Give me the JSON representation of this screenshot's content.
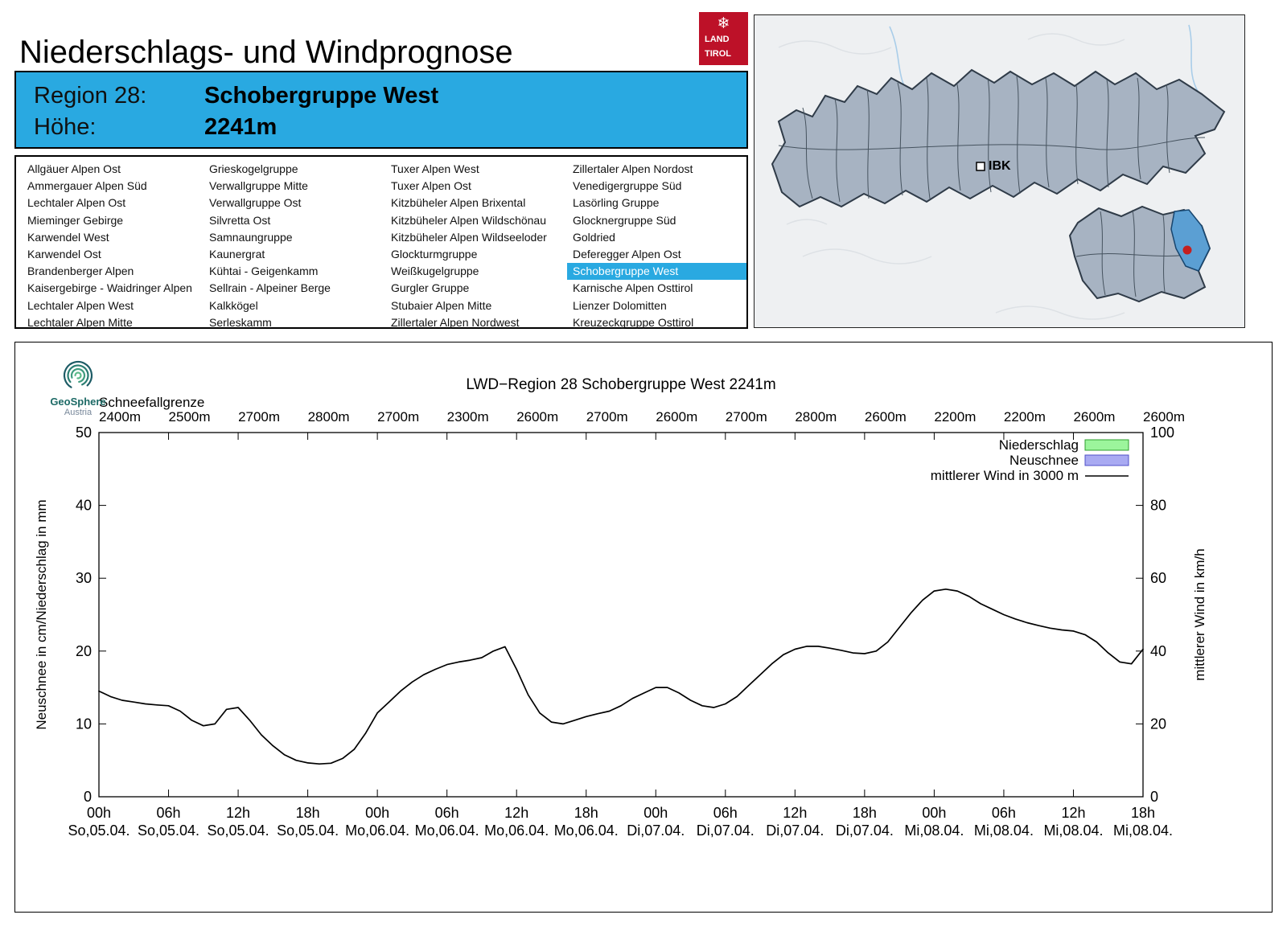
{
  "header": {
    "title": "Niederschlags- und Windprognose",
    "logo": {
      "line1": "LAND",
      "line2": "TIROL",
      "color": "#bd1128"
    },
    "region_label": "Region 28:",
    "region_name": "Schobergruppe West",
    "altitude_label": "Höhe:",
    "altitude_value": "2241m",
    "accent_color": "#29a9e1"
  },
  "region_list": {
    "selected": "Schobergruppe West",
    "columns": [
      [
        "Allgäuer Alpen Ost",
        "Ammergauer Alpen Süd",
        "Lechtaler Alpen Ost",
        "Mieminger Gebirge",
        "Karwendel West",
        "Karwendel Ost",
        "Brandenberger Alpen",
        "Kaisergebirge - Waidringer Alpen",
        "Lechtaler Alpen West",
        "Lechtaler Alpen Mitte"
      ],
      [
        "Grieskogelgruppe",
        "Verwallgruppe Mitte",
        "Verwallgruppe Ost",
        "Silvretta Ost",
        "Samnaungruppe",
        "Kaunergrat",
        "Kühtai - Geigenkamm",
        "Sellrain - Alpeiner Berge",
        "Kalkkögel",
        "Serleskamm"
      ],
      [
        "Tuxer Alpen West",
        "Tuxer Alpen Ost",
        "Kitzbüheler Alpen Brixental",
        "Kitzbüheler Alpen Wildschönau",
        "Kitzbüheler Alpen Wildseeloder",
        "Glockturmgruppe",
        "Weißkugelgruppe",
        "Gurgler Gruppe",
        "Stubaier Alpen Mitte",
        "Zillertaler Alpen Nordwest"
      ],
      [
        "Zillertaler Alpen Nordost",
        "Venedigergruppe Süd",
        "Lasörling Gruppe",
        "Glocknergruppe Süd",
        "Goldried",
        "Deferegger Alpen Ost",
        "Schobergruppe West",
        "Karnische Alpen Osttirol",
        "Lienzer Dolomitten",
        "Kreuzeckgruppe Osttirol"
      ]
    ]
  },
  "map": {
    "city_label": "IBK",
    "highlight_color": "#5b9fd3",
    "marker_color": "#c42020"
  },
  "chart_header": {
    "logo_line1": "GeoSphere",
    "logo_line2": "Austria"
  },
  "chart_data": {
    "type": "line",
    "title": "LWD−Region 28 Schobergruppe West 2241m",
    "snowline_label": "Schneefallgrenze",
    "snowline_values": [
      "2400m",
      "2500m",
      "2700m",
      "2800m",
      "2700m",
      "2300m",
      "2600m",
      "2700m",
      "2600m",
      "2700m",
      "2800m",
      "2600m",
      "2200m",
      "2200m",
      "2600m",
      "2600m"
    ],
    "ylabel_left": "Neuschnee in cm/Niederschlag in mm",
    "ylabel_right": "mittlerer Wind in km/h",
    "ylim_left": [
      0,
      50
    ],
    "ylim_right": [
      0,
      100
    ],
    "x_ticks_hours": [
      "00h",
      "06h",
      "12h",
      "18h",
      "00h",
      "06h",
      "12h",
      "18h",
      "00h",
      "06h",
      "12h",
      "18h",
      "00h",
      "06h",
      "12h",
      "18h"
    ],
    "x_ticks_dates": [
      "So,05.04.",
      "So,05.04.",
      "So,05.04.",
      "So,05.04.",
      "Mo,06.04.",
      "Mo,06.04.",
      "Mo,06.04.",
      "Mo,06.04.",
      "Di,07.04.",
      "Di,07.04.",
      "Di,07.04.",
      "Di,07.04.",
      "Mi,08.04.",
      "Mi,08.04.",
      "Mi,08.04.",
      "Mi,08.04."
    ],
    "legend": [
      {
        "label": "Niederschlag",
        "type": "box",
        "fill": "#9cf59c",
        "border": "#2e9e2e"
      },
      {
        "label": "Neuschnee",
        "type": "box",
        "fill": "#a9aaf2",
        "border": "#5050c8"
      },
      {
        "label": "mittlerer Wind in 3000 m",
        "type": "line",
        "color": "#000000"
      }
    ],
    "precipitation_mm": [],
    "new_snow_cm": [],
    "wind_series": {
      "name": "mittlerer Wind in 3000 m",
      "axis": "right",
      "x_hours": [
        0,
        1,
        2,
        3,
        4,
        5,
        6,
        7,
        8,
        9,
        10,
        11,
        12,
        13,
        14,
        15,
        16,
        17,
        18,
        19,
        20,
        21,
        22,
        23,
        24,
        25,
        26,
        27,
        28,
        29,
        30,
        31,
        32,
        33,
        34,
        35,
        36,
        37,
        38,
        39,
        40,
        41,
        42,
        43,
        44,
        45,
        46,
        47,
        48,
        49,
        50,
        51,
        52,
        53,
        54,
        55,
        56,
        57,
        58,
        59,
        60,
        61,
        62,
        63,
        64,
        65,
        66,
        67,
        68,
        69,
        70,
        71,
        72,
        73,
        74,
        75,
        76,
        77,
        78,
        79,
        80,
        81,
        82,
        83,
        84,
        85,
        86,
        87,
        88,
        89,
        90
      ],
      "values_kmh": [
        29,
        27.5,
        26.5,
        26,
        25.5,
        25.2,
        25,
        23.5,
        21,
        19.5,
        20,
        24,
        24.5,
        21,
        17,
        14,
        11.5,
        10,
        9.3,
        9,
        9.2,
        10.5,
        13,
        17.5,
        23,
        26,
        29,
        31.5,
        33.5,
        35,
        36.3,
        37,
        37.5,
        38.2,
        40,
        41.2,
        35,
        28,
        23,
        20.5,
        20,
        21,
        22,
        22.8,
        23.5,
        25,
        27,
        28.5,
        30,
        30,
        28.5,
        26.5,
        25,
        24.5,
        25.5,
        27.5,
        30.5,
        33.5,
        36.5,
        39,
        40.5,
        41.3,
        41.3,
        40.8,
        40.2,
        39.5,
        39.3,
        40,
        42.5,
        46.5,
        50.5,
        54,
        56.5,
        57,
        56.5,
        55,
        53,
        51.5,
        50,
        48.8,
        47.8,
        47,
        46.3,
        45.8,
        45.5,
        44.5,
        42.5,
        39.5,
        37,
        36.5,
        40.5
      ]
    }
  }
}
